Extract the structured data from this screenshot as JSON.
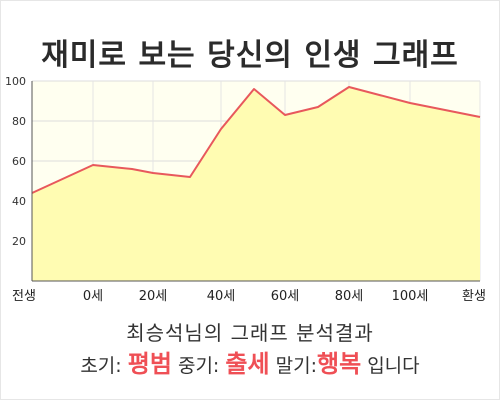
{
  "title": "재미로 보는 당신의 인생 그래프",
  "result": {
    "heading": "최승석님의 그래프 분석결과",
    "early_label": "초기:",
    "early_value": "평범",
    "middle_label": "중기:",
    "middle_value": "출세",
    "late_label": "말기:",
    "late_value": "행복",
    "suffix": "입니다"
  },
  "colors": {
    "line": "#e8585c",
    "fill": "#fffcb2",
    "plot_bg": "#fffff0",
    "highlight": "#ef4f55"
  },
  "chart_data": {
    "type": "area",
    "x_tick_labels": [
      "전생",
      "0세",
      "20세",
      "40세",
      "60세",
      "80세",
      "100세",
      "환생"
    ],
    "y_ticks": [
      20,
      40,
      60,
      80,
      100
    ],
    "ylim": [
      0,
      100
    ],
    "grid": true,
    "series": [
      {
        "x": [
          "전생",
          "0세",
          "10세",
          "20세",
          "30세",
          "40세",
          "45세",
          "60세",
          "70세",
          "80세",
          "100세",
          "환생"
        ],
        "values": [
          44,
          58,
          56,
          54,
          52,
          76,
          96,
          83,
          87,
          97,
          89,
          82
        ]
      }
    ]
  }
}
